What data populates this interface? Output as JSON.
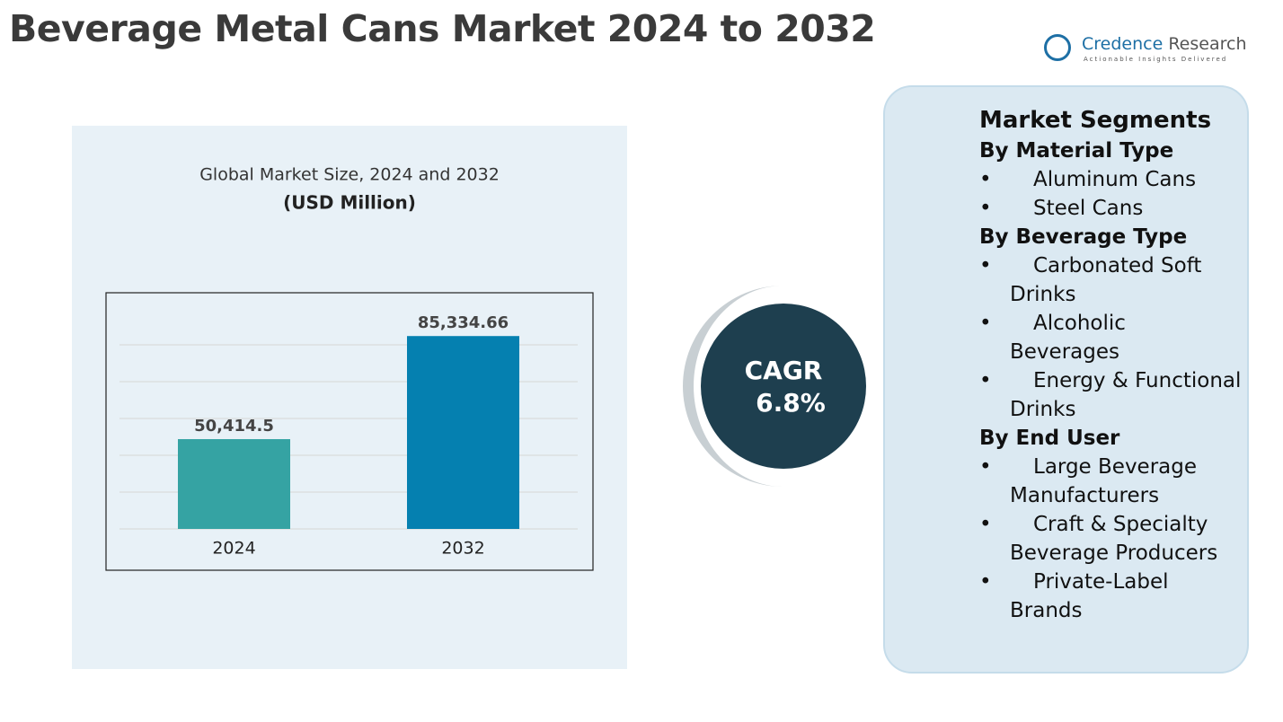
{
  "header": {
    "title": "Beverage Metal Cans Market 2024 to 2032"
  },
  "logo": {
    "name1": "Credence",
    "name2": "Research",
    "tagline": "Actionable Insights Delivered"
  },
  "chart_data": {
    "type": "bar",
    "title": "Global Market Size, 2024 and 2032",
    "subtitle": "(USD Million)",
    "categories": [
      "2024",
      "2032"
    ],
    "values": [
      50414.5,
      85334.66
    ],
    "value_labels": [
      "50,414.5",
      "85,334.66"
    ],
    "colors": [
      "#35a3a3",
      "#0580b0"
    ],
    "ylim": [
      20000,
      100000
    ],
    "grid": true
  },
  "cagr": {
    "label": "CAGR",
    "value": "6.8%"
  },
  "segments": {
    "title": "Market Segments",
    "groups": [
      {
        "heading": "By Material Type",
        "items": [
          "Aluminum Cans",
          "Steel Cans"
        ]
      },
      {
        "heading": "By Beverage Type",
        "items": [
          "Carbonated Soft Drinks",
          "Alcoholic Beverages",
          "Energy & Functional Drinks"
        ]
      },
      {
        "heading": "By End User",
        "items": [
          "Large Beverage Manufacturers",
          "Craft & Specialty Beverage Producers",
          "Private-Label Brands"
        ]
      }
    ]
  }
}
